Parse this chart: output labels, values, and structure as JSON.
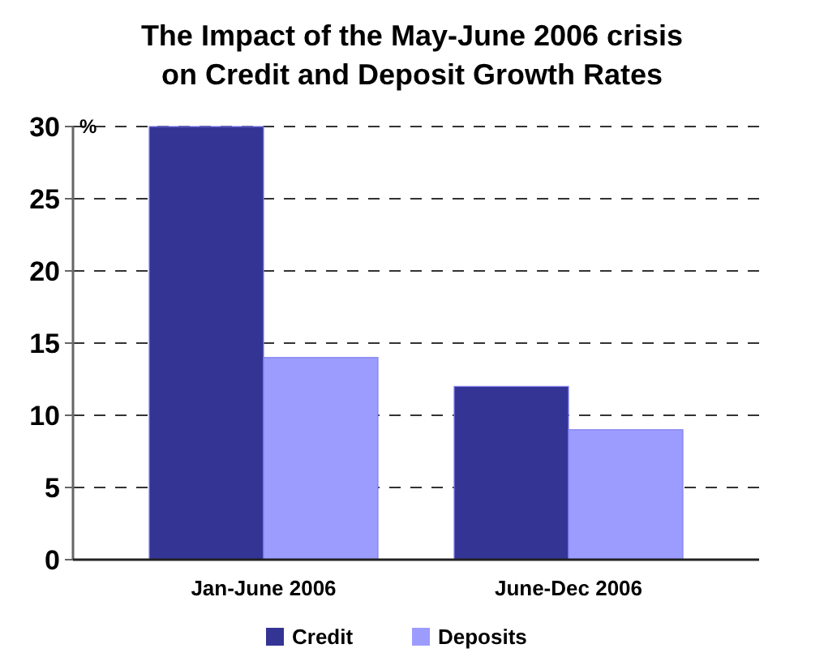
{
  "chart_data": {
    "type": "bar",
    "title": "The Impact of the May-June 2006 crisis on Credit and Deposit Growth Rates",
    "ylabel": "%",
    "categories": [
      "Jan-June 2006",
      "June-Dec 2006"
    ],
    "series": [
      {
        "name": "Credit",
        "color": "#343495",
        "values": [
          30,
          12
        ]
      },
      {
        "name": "Deposits",
        "color": "#9c9cfe",
        "values": [
          14,
          9
        ]
      }
    ],
    "ylim": [
      0,
      30
    ],
    "yticks": [
      0,
      5,
      10,
      15,
      20,
      25,
      30
    ],
    "grid": "y",
    "legend": "bottom"
  }
}
